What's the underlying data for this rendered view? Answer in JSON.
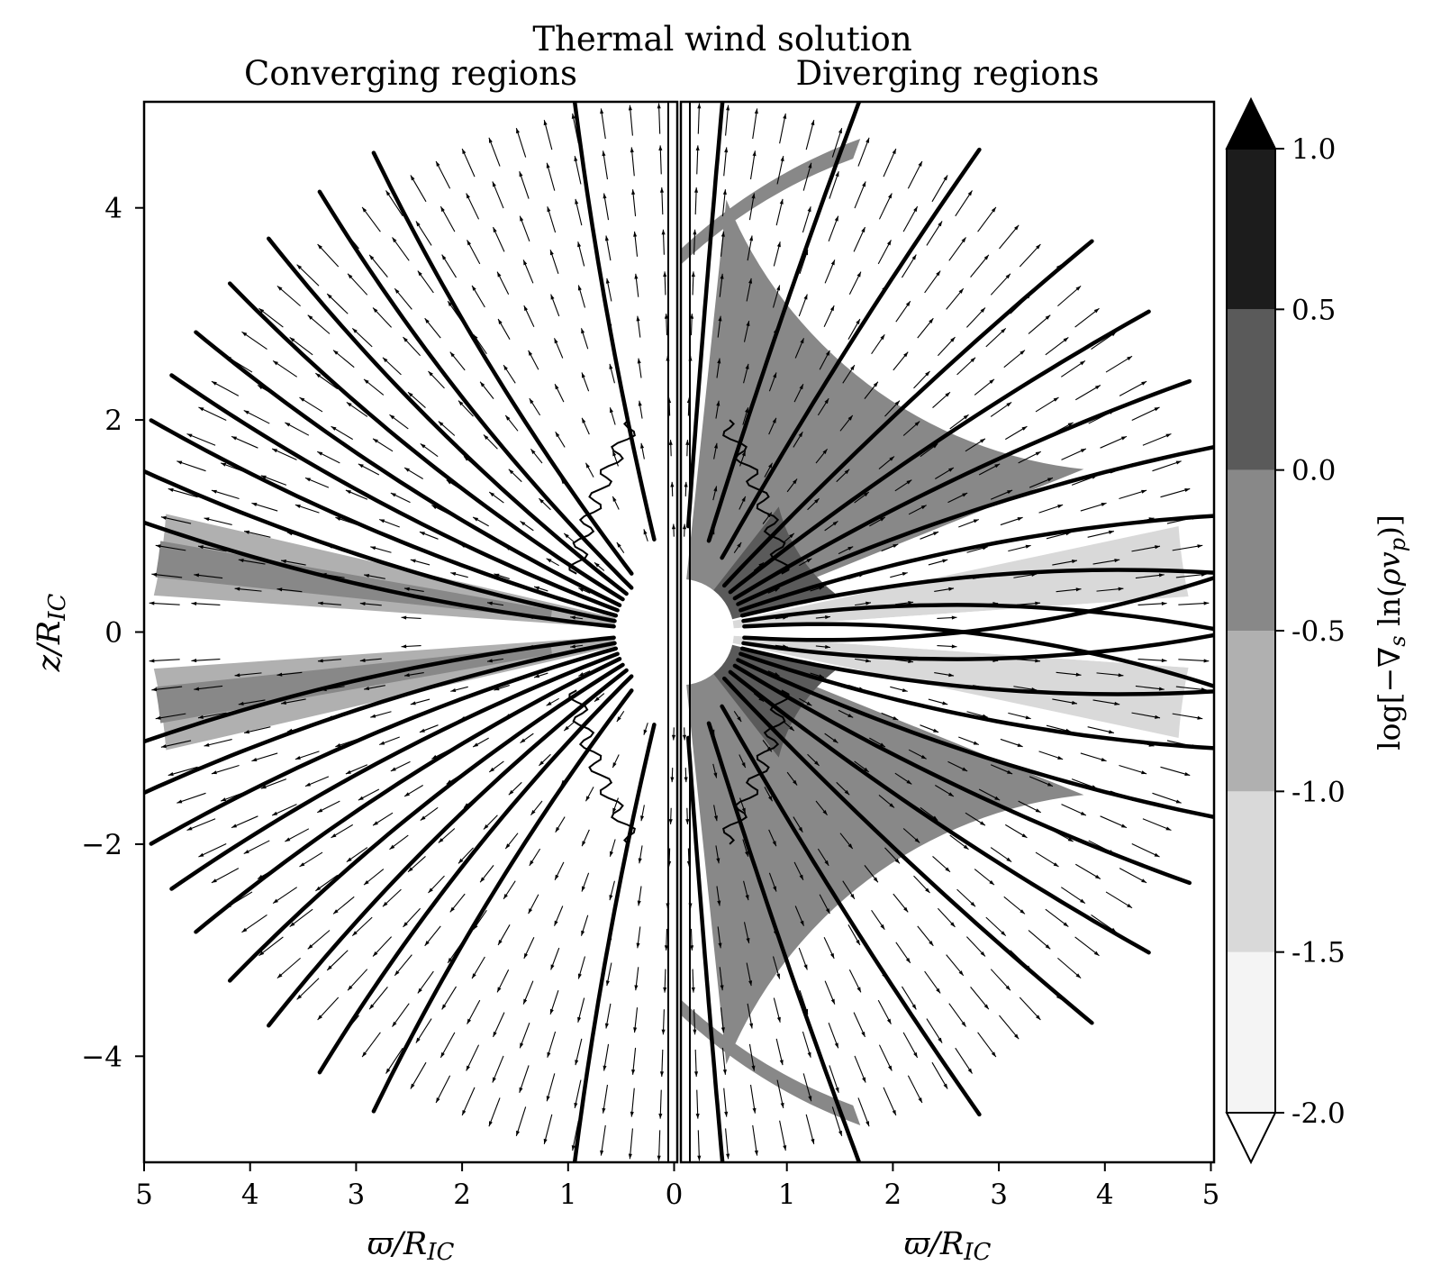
{
  "chart_data": {
    "type": "heatmap",
    "title": "Thermal wind solution",
    "panels": [
      {
        "subtitle": "Converging regions",
        "xlabel": "ϖ/R_IC",
        "xticks": [
          "5",
          "4",
          "3",
          "2",
          "1",
          "0"
        ],
        "xlim": [
          5,
          0
        ],
        "ylabel": "z/R_IC",
        "yticks": [
          "4",
          "2",
          "0",
          "−2",
          "−4"
        ],
        "ylim": [
          -5,
          5
        ]
      },
      {
        "subtitle": "Diverging regions",
        "xlabel": "ϖ/R_IC",
        "xticks": [
          "0",
          "1",
          "2",
          "3",
          "4",
          "5"
        ],
        "xlim": [
          0,
          5
        ],
        "ylim": [
          -5,
          5
        ]
      }
    ],
    "colorbar": {
      "label": "log[−∇_s ln(ρv_p)]",
      "levels": [
        -2.0,
        -1.5,
        -1.0,
        -0.5,
        0.0,
        0.5,
        1.0
      ],
      "tick_labels": [
        "-2.0",
        "-1.5",
        "-1.0",
        "-0.5",
        "0.0",
        "0.5",
        "1.0"
      ],
      "colors": [
        "#f4f4f4",
        "#d9d9d9",
        "#b0b0b0",
        "#888888",
        "#5a5a5a",
        "#1c1c1c"
      ],
      "extend": "both",
      "over_color": "#000000",
      "under_color": "#ffffff"
    },
    "inner_radius": 0.5,
    "outer_radius": 4.95,
    "field_lines_converging": [
      {
        "theta_deg": 5,
        "r_start": 0.6,
        "bend": 0.12
      },
      {
        "theta_deg": 10,
        "r_start": 0.6,
        "bend": 0.12
      },
      {
        "theta_deg": 15,
        "r_start": 0.6,
        "bend": 0.12
      },
      {
        "theta_deg": 20,
        "r_start": 0.6,
        "bend": 0.12
      },
      {
        "theta_deg": 25,
        "r_start": 0.6,
        "bend": 0.12
      },
      {
        "theta_deg": 31,
        "r_start": 0.6,
        "bend": 0.12
      },
      {
        "theta_deg": 37,
        "r_start": 0.6,
        "bend": 0.12
      },
      {
        "theta_deg": 44,
        "r_start": 0.6,
        "bend": 0.12
      },
      {
        "theta_deg": 52,
        "r_start": 0.7,
        "bend": 0.1
      },
      {
        "theta_deg": 76,
        "r_start": 0.9,
        "bend": 0.06
      }
    ],
    "field_lines_diverging": [
      {
        "theta_deg": 5,
        "r_start": 0.6,
        "bend": -0.2
      },
      {
        "theta_deg": 10,
        "r_start": 0.6,
        "bend": -0.18
      },
      {
        "theta_deg": 15,
        "r_start": 0.6,
        "bend": -0.16
      },
      {
        "theta_deg": 20,
        "r_start": 0.6,
        "bend": -0.14
      },
      {
        "theta_deg": 26,
        "r_start": 0.6,
        "bend": -0.12
      },
      {
        "theta_deg": 32,
        "r_start": 0.6,
        "bend": -0.1
      },
      {
        "theta_deg": 39,
        "r_start": 0.6,
        "bend": -0.08
      },
      {
        "theta_deg": 47,
        "r_start": 0.6,
        "bend": -0.06
      },
      {
        "theta_deg": 61,
        "r_start": 0.8,
        "bend": -0.05
      },
      {
        "theta_deg": 73,
        "r_start": 0.9,
        "bend": -0.03
      },
      {
        "theta_deg": 86,
        "r_start": 1.0,
        "bend": -0.01
      }
    ]
  }
}
